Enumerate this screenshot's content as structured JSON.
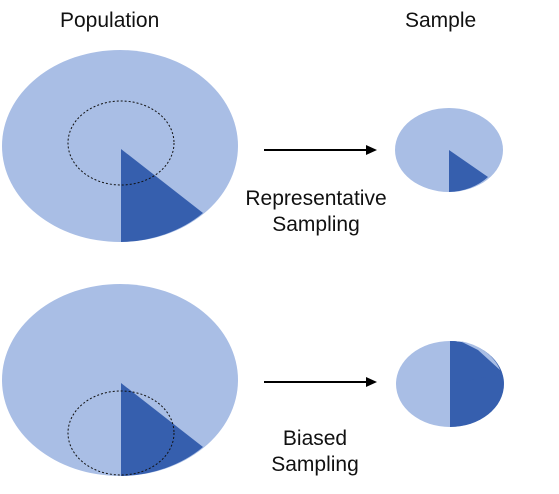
{
  "labels": {
    "population": "Population",
    "sample": "Sample",
    "representative_line1": "Representative",
    "representative_line2": "Sampling",
    "biased_line1": "Biased",
    "biased_line2": "Sampling"
  },
  "colors": {
    "light": "#a9bee5",
    "dark": "#365fae",
    "arrow": "#000000",
    "sample_outline": "#111111"
  }
}
